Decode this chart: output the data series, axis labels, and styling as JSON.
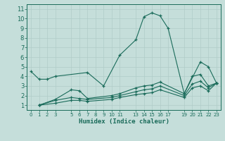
{
  "xlabel": "Humidex (Indice chaleur)",
  "background_color": "#c5deda",
  "grid_color": "#b0ccc8",
  "line_color": "#1a6b5a",
  "xtick_positions": [
    0,
    1,
    2,
    3,
    5,
    6,
    7,
    8,
    9,
    10,
    11,
    13,
    14,
    15,
    16,
    17,
    19,
    20,
    21,
    22,
    23
  ],
  "xtick_labels": [
    "0",
    "1",
    "2",
    "3",
    "5",
    "6",
    "7",
    "8",
    "9",
    "10",
    "11",
    "13",
    "14",
    "15",
    "16",
    "17",
    "19",
    "20",
    "21",
    "22",
    "23"
  ],
  "ylim": [
    0.5,
    11.5
  ],
  "xlim": [
    -0.5,
    23.5
  ],
  "yticks": [
    1,
    2,
    3,
    4,
    5,
    6,
    7,
    8,
    9,
    10,
    11
  ],
  "lines": [
    {
      "x": [
        0,
        1,
        2,
        3,
        7,
        9,
        11,
        13,
        14,
        15,
        16,
        17,
        19,
        21,
        22,
        23
      ],
      "y": [
        4.5,
        3.7,
        3.7,
        4.0,
        4.4,
        3.0,
        6.2,
        7.8,
        10.2,
        10.6,
        10.3,
        9.0,
        2.2,
        5.5,
        5.0,
        3.3
      ]
    },
    {
      "x": [
        1,
        3,
        5,
        6,
        7,
        10,
        11,
        13,
        14,
        15,
        16,
        19,
        20,
        21,
        22,
        23
      ],
      "y": [
        1.0,
        1.6,
        2.6,
        2.5,
        1.7,
        2.0,
        2.2,
        2.8,
        3.0,
        3.1,
        3.4,
        2.2,
        4.0,
        4.2,
        3.0,
        3.3
      ]
    },
    {
      "x": [
        1,
        3,
        5,
        6,
        7,
        10,
        11,
        13,
        14,
        15,
        16,
        19,
        20,
        21,
        22,
        23
      ],
      "y": [
        1.0,
        1.5,
        1.8,
        1.7,
        1.6,
        1.8,
        2.0,
        2.4,
        2.6,
        2.7,
        3.0,
        2.0,
        3.2,
        3.5,
        2.8,
        3.3
      ]
    },
    {
      "x": [
        1,
        3,
        5,
        6,
        7,
        10,
        11,
        13,
        14,
        15,
        16,
        19,
        20,
        21,
        22,
        23
      ],
      "y": [
        1.0,
        1.2,
        1.5,
        1.5,
        1.4,
        1.6,
        1.8,
        2.1,
        2.2,
        2.3,
        2.6,
        1.8,
        2.8,
        3.0,
        2.5,
        3.3
      ]
    }
  ]
}
